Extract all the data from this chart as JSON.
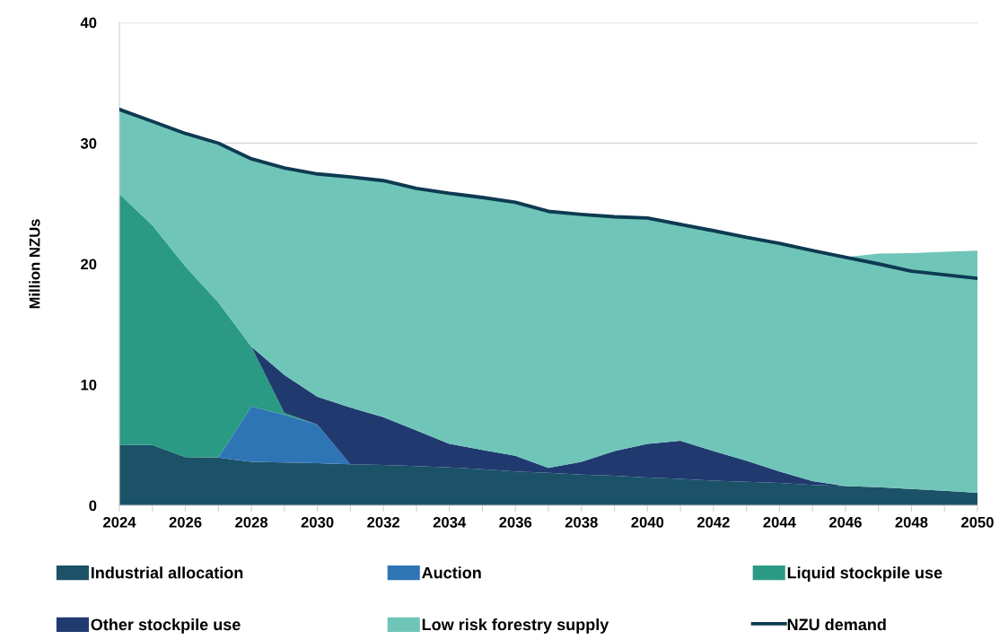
{
  "chart_data": {
    "type": "area",
    "stacked": true,
    "ylabel": "Million NZUs",
    "x": [
      2024,
      2025,
      2026,
      2027,
      2028,
      2029,
      2030,
      2031,
      2032,
      2033,
      2034,
      2035,
      2036,
      2037,
      2038,
      2039,
      2040,
      2041,
      2042,
      2043,
      2044,
      2045,
      2046,
      2047,
      2048,
      2049,
      2050
    ],
    "series": [
      {
        "name": "Industrial allocation",
        "color": "#1b5268",
        "values": [
          5.0,
          5.0,
          4.0,
          3.95,
          3.6,
          3.55,
          3.5,
          3.4,
          3.35,
          3.25,
          3.15,
          3.0,
          2.8,
          2.7,
          2.55,
          2.45,
          2.3,
          2.2,
          2.05,
          1.95,
          1.85,
          1.7,
          1.6,
          1.5,
          1.35,
          1.2,
          1.05
        ]
      },
      {
        "name": "Auction",
        "color": "#2e75b6",
        "values": [
          null,
          null,
          null,
          0,
          4.6,
          3.95,
          3.2,
          0,
          null,
          null,
          null,
          null,
          null,
          null,
          null,
          null,
          null,
          null,
          null,
          null,
          null,
          null,
          null,
          null,
          null,
          null,
          null
        ]
      },
      {
        "name": "Liquid stockpile use",
        "color": "#2a9a84",
        "values": [
          20.8,
          18.2,
          15.8,
          12.85,
          4.95,
          0.15,
          0,
          null,
          null,
          null,
          null,
          null,
          null,
          null,
          null,
          null,
          null,
          null,
          null,
          null,
          null,
          null,
          null,
          null,
          null,
          null,
          null
        ]
      },
      {
        "name": "Other stockpile use",
        "color": "#203a70",
        "values": [
          null,
          null,
          null,
          null,
          0,
          3.15,
          2.3,
          4.7,
          3.95,
          2.95,
          1.95,
          1.6,
          1.3,
          0.4,
          1.05,
          2.05,
          2.8,
          3.15,
          2.45,
          1.75,
          0.95,
          0.3,
          0,
          null,
          null,
          null,
          null
        ]
      },
      {
        "name": "Low risk forestry supply",
        "color": "#6fc6b8",
        "values": [
          7.0,
          8.6,
          11.0,
          13.2,
          15.55,
          17.15,
          18.45,
          19.1,
          19.6,
          20.05,
          20.75,
          20.9,
          21.0,
          21.25,
          20.5,
          19.4,
          18.7,
          17.92,
          18.25,
          18.5,
          18.9,
          19.1,
          18.95,
          19.35,
          19.55,
          19.8,
          20.05
        ]
      },
      {
        "name": "NZU demand",
        "type": "line",
        "color": "#0e3a52",
        "values": [
          32.8,
          31.8,
          30.8,
          30.0,
          28.7,
          27.95,
          27.45,
          27.2,
          26.9,
          26.25,
          25.85,
          25.5,
          25.1,
          24.35,
          24.1,
          23.9,
          23.8,
          23.27,
          22.75,
          22.2,
          21.7,
          21.1,
          20.55,
          20.0,
          19.4,
          19.1,
          18.8
        ]
      }
    ],
    "xlim": [
      2024,
      2050
    ],
    "xticks": [
      2024,
      {
        "value": 2025,
        "label": null
      },
      2026,
      {
        "value": 2027,
        "label": null
      },
      2028,
      {
        "value": 2029,
        "label": null
      },
      2030,
      {
        "value": 2031,
        "label": null
      },
      2032,
      {
        "value": 2033,
        "label": null
      },
      2034,
      {
        "value": 2035,
        "label": null
      },
      2036,
      {
        "value": 2037,
        "label": null
      },
      2038,
      {
        "value": 2039,
        "label": null
      },
      2040,
      {
        "value": 2041,
        "label": null
      },
      2042,
      {
        "value": 2043,
        "label": null
      },
      2044,
      {
        "value": 2045,
        "label": null
      },
      2046,
      {
        "value": 2047,
        "label": null
      },
      2048,
      {
        "value": 2049,
        "label": null
      },
      2050
    ],
    "ylim": [
      0,
      40
    ],
    "yticks": [
      0,
      10,
      20,
      30,
      40
    ],
    "grid": "y",
    "legend": "bottom"
  }
}
